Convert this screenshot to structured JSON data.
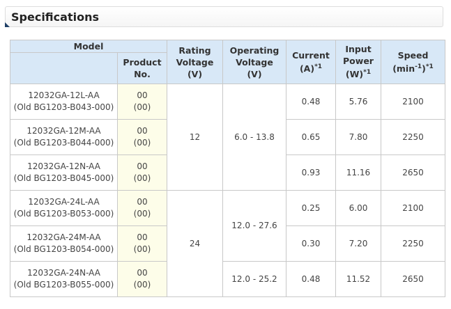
{
  "page": {
    "title": "Specifications"
  },
  "table": {
    "headers": {
      "model": "Model",
      "product_no": [
        "Product",
        "No."
      ],
      "rating_voltage": [
        "Rating",
        "Voltage",
        "(V)"
      ],
      "operating_voltage": [
        "Operating",
        "Voltage",
        "(V)"
      ],
      "current": [
        "Current",
        "(A)"
      ],
      "input_power": [
        "Input",
        "Power",
        "(W)"
      ],
      "speed": [
        "Speed",
        "(min",
        "-1",
        ")"
      ],
      "footnote_mark": "*1"
    },
    "rows": [
      {
        "model": "12032GA-12L-AA",
        "old_model": "(Old BG1203-B043-000)",
        "product_no": "00",
        "product_no_alt": "(00)",
        "current": "0.48",
        "input_power": "5.76",
        "speed": "2100"
      },
      {
        "model": "12032GA-12M-AA",
        "old_model": "(Old BG1203-B044-000)",
        "product_no": "00",
        "product_no_alt": "(00)",
        "current": "0.65",
        "input_power": "7.80",
        "speed": "2250"
      },
      {
        "model": "12032GA-12N-AA",
        "old_model": "(Old BG1203-B045-000)",
        "product_no": "00",
        "product_no_alt": "(00)",
        "current": "0.93",
        "input_power": "11.16",
        "speed": "2650"
      },
      {
        "model": "12032GA-24L-AA",
        "old_model": "(Old BG1203-B053-000)",
        "product_no": "00",
        "product_no_alt": "(00)",
        "current": "0.25",
        "input_power": "6.00",
        "speed": "2100"
      },
      {
        "model": "12032GA-24M-AA",
        "old_model": "(Old BG1203-B054-000)",
        "product_no": "00",
        "product_no_alt": "(00)",
        "current": "0.30",
        "input_power": "7.20",
        "speed": "2250"
      },
      {
        "model": "12032GA-24N-AA",
        "old_model": "(Old BG1203-B055-000)",
        "product_no": "00",
        "product_no_alt": "(00)",
        "current": "0.48",
        "input_power": "11.52",
        "speed": "2650"
      }
    ],
    "rating_voltage_groups": [
      "12",
      "24"
    ],
    "operating_voltage_groups": [
      "6.0 - 13.8",
      "12.0 - 27.6",
      "12.0 - 25.2"
    ]
  }
}
